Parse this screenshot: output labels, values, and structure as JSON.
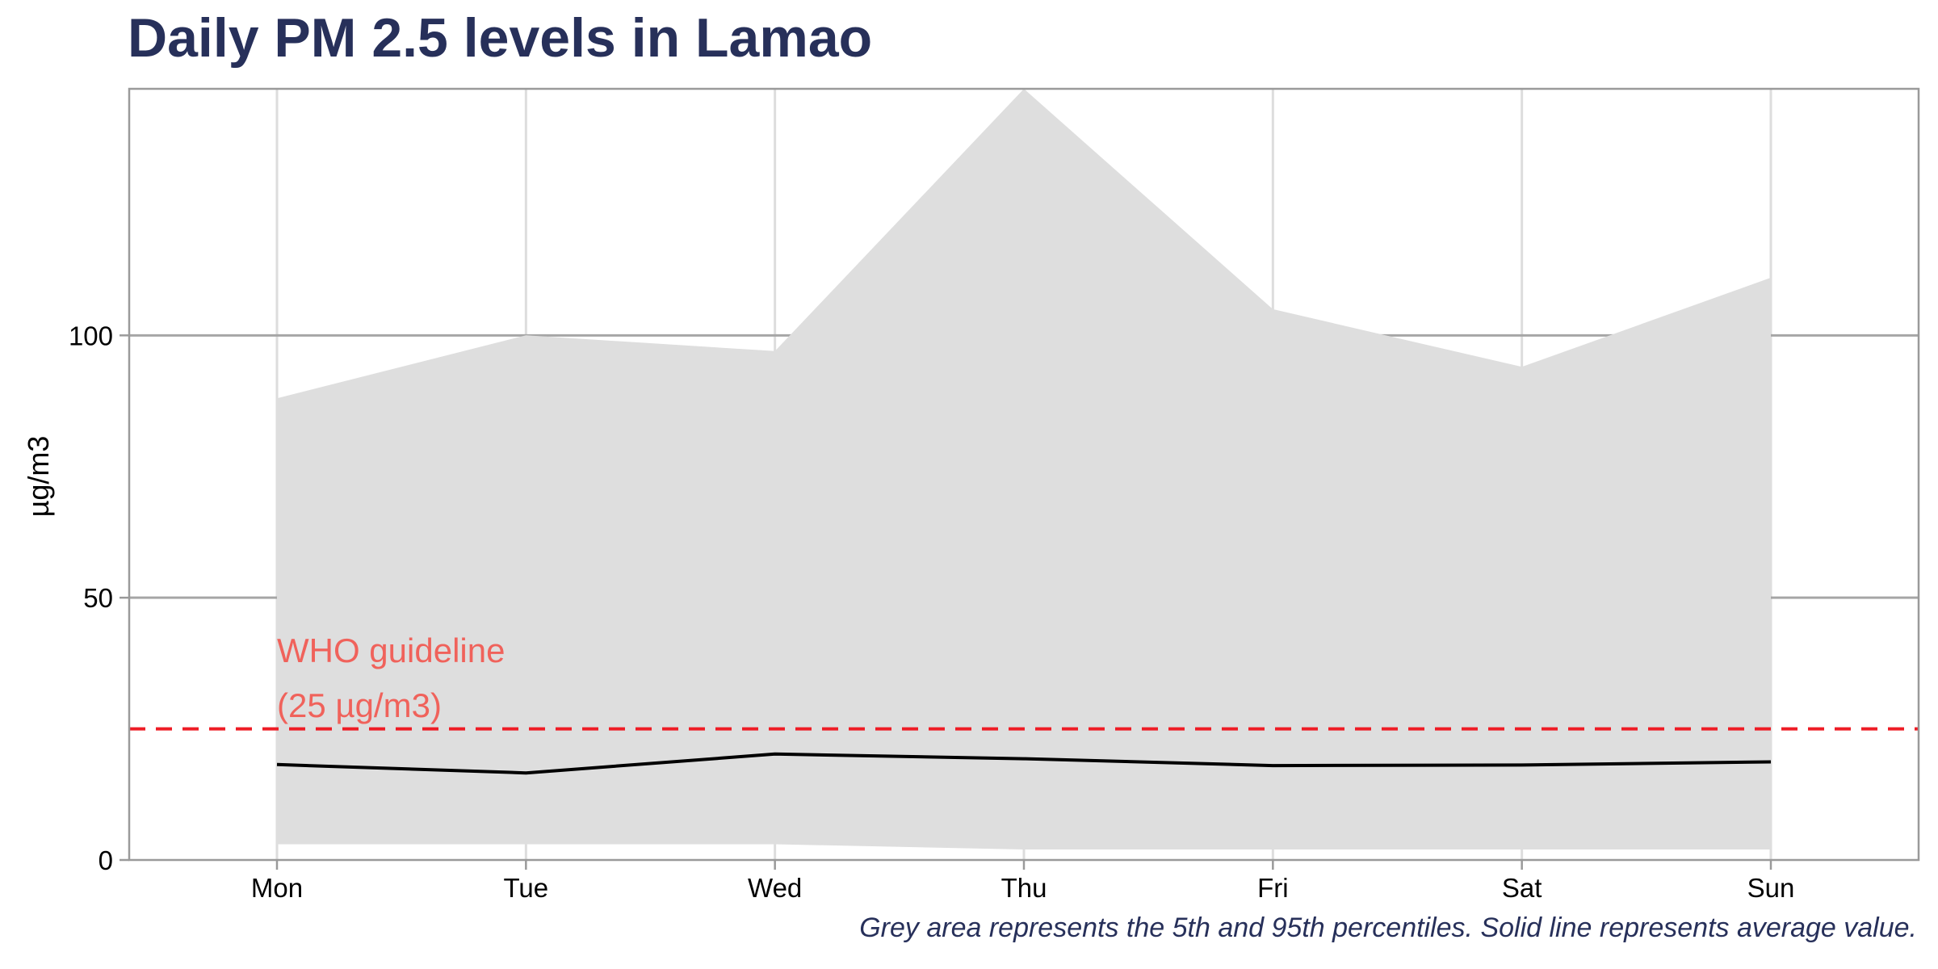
{
  "chart_data": {
    "type": "area",
    "title": "Daily PM 2.5 levels in Lamao",
    "caption": "Grey area represents the 5th and 95th percentiles. Solid line represents average value.",
    "xlabel": "",
    "ylabel": "µg/m3",
    "categories": [
      "Mon",
      "Tue",
      "Wed",
      "Thu",
      "Fri",
      "Sat",
      "Sun"
    ],
    "ylim": [
      0,
      147
    ],
    "yticks": [
      0,
      50,
      100
    ],
    "grid": true,
    "series": [
      {
        "values": [
          3,
          3,
          3,
          2,
          2,
          2,
          2
        ],
        "role": "5th percentile"
      },
      {
        "values": [
          88,
          100,
          97,
          147,
          105,
          94,
          111
        ],
        "role": "95th percentile"
      },
      {
        "values": [
          18.2,
          16.6,
          20.2,
          19.3,
          18.0,
          18.1,
          18.7
        ],
        "role": "average"
      }
    ],
    "reference_line": {
      "value": 25,
      "label_line1": "WHO guideline",
      "label_line2": "(25 µg/m3)",
      "color": "#ee1c25",
      "label_color": "#f0625b"
    },
    "colors": {
      "band": "#dedede",
      "line": "#000000",
      "grid_major": "#a6a6a6",
      "grid_vertical": "#dddddd",
      "panel_border": "#9a9a9a",
      "title": "#27305a"
    }
  }
}
